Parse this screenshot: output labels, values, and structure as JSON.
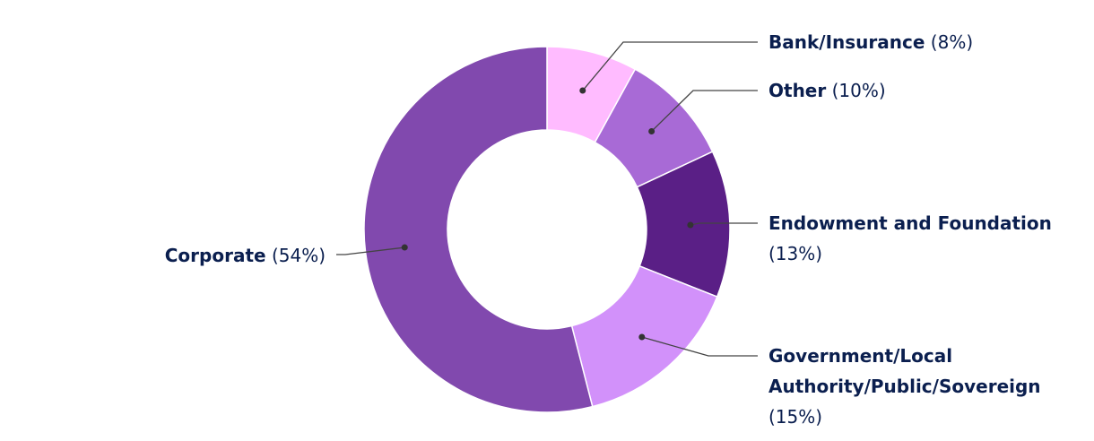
{
  "chart_data": {
    "type": "donut",
    "categories": [
      "Bank/Insurance",
      "Other",
      "Endowment and Foundation",
      "Government/Local Authority/Public/Sovereign",
      "Corporate"
    ],
    "values": [
      8,
      10,
      13,
      15,
      54
    ],
    "value_labels": [
      "(8%)",
      "(10%)",
      "(13%)",
      "(15%)",
      "(54%)"
    ],
    "colors": [
      "#ffbbff",
      "#a86ad6",
      "#5a1f86",
      "#d291fa",
      "#8149ae"
    ]
  }
}
